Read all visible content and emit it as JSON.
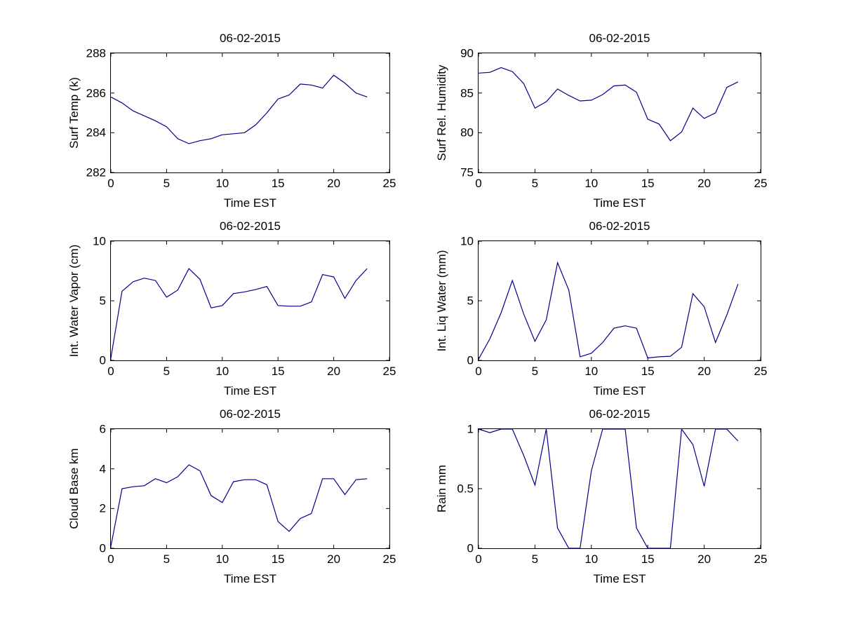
{
  "style": {
    "line_color": "#00008B",
    "axis_color": "#000000",
    "text_color": "#000000",
    "background": "#ffffff"
  },
  "chart_data": [
    {
      "type": "line",
      "title": "06-02-2015",
      "xlabel": "Time EST",
      "ylabel": "Surf Temp (k)",
      "xlim": [
        0,
        25
      ],
      "ylim": [
        282,
        288
      ],
      "xticks": [
        0,
        5,
        10,
        15,
        20,
        25
      ],
      "yticks": [
        282,
        284,
        286,
        288
      ],
      "grid": false,
      "legend": null,
      "x": [
        0,
        1,
        2,
        3,
        4,
        5,
        6,
        7,
        8,
        9,
        10,
        11,
        12,
        13,
        14,
        15,
        16,
        17,
        18,
        19,
        20,
        21,
        22,
        23
      ],
      "values": [
        285.8,
        285.5,
        285.1,
        284.85,
        284.6,
        284.3,
        283.7,
        283.45,
        283.6,
        283.7,
        283.9,
        283.95,
        284.0,
        284.4,
        285.0,
        285.7,
        285.9,
        286.45,
        286.4,
        286.25,
        286.9,
        286.5,
        286.0,
        285.8
      ]
    },
    {
      "type": "line",
      "title": "06-02-2015",
      "xlabel": "Time EST",
      "ylabel": "Surf Rel. Humidity",
      "xlim": [
        0,
        25
      ],
      "ylim": [
        75,
        90
      ],
      "xticks": [
        0,
        5,
        10,
        15,
        20,
        25
      ],
      "yticks": [
        75,
        80,
        85,
        90
      ],
      "grid": false,
      "legend": null,
      "x": [
        0,
        1,
        2,
        3,
        4,
        5,
        6,
        7,
        8,
        9,
        10,
        11,
        12,
        13,
        14,
        15,
        16,
        17,
        18,
        19,
        20,
        21,
        22,
        23
      ],
      "values": [
        87.5,
        87.6,
        88.2,
        87.7,
        86.2,
        83.1,
        83.9,
        85.5,
        84.7,
        84.0,
        84.1,
        84.8,
        85.9,
        86.0,
        85.1,
        81.7,
        81.1,
        79.0,
        80.1,
        83.1,
        81.8,
        82.5,
        85.7,
        86.4
      ]
    },
    {
      "type": "line",
      "title": "06-02-2015",
      "xlabel": "Time EST",
      "ylabel": "Int. Water Vapor (cm)",
      "xlim": [
        0,
        25
      ],
      "ylim": [
        0,
        10
      ],
      "xticks": [
        0,
        5,
        10,
        15,
        20,
        25
      ],
      "yticks": [
        0,
        5,
        10
      ],
      "grid": false,
      "legend": null,
      "x": [
        0,
        1,
        2,
        3,
        4,
        5,
        6,
        7,
        8,
        9,
        10,
        11,
        12,
        13,
        14,
        15,
        16,
        17,
        18,
        19,
        20,
        21,
        22,
        23
      ],
      "values": [
        0.2,
        5.8,
        6.6,
        6.9,
        6.7,
        5.3,
        5.9,
        7.7,
        6.8,
        4.4,
        4.6,
        5.6,
        5.75,
        5.95,
        6.2,
        4.6,
        4.55,
        4.55,
        4.9,
        7.2,
        7.0,
        5.2,
        6.7,
        7.7
      ]
    },
    {
      "type": "line",
      "title": "06-02-2015",
      "xlabel": "Time EST",
      "ylabel": "Int. Liq Water (mm)",
      "xlim": [
        0,
        25
      ],
      "ylim": [
        0,
        10
      ],
      "xticks": [
        0,
        5,
        10,
        15,
        20,
        25
      ],
      "yticks": [
        0,
        5,
        10
      ],
      "grid": false,
      "legend": null,
      "x": [
        0,
        1,
        2,
        3,
        4,
        5,
        6,
        7,
        8,
        9,
        10,
        11,
        12,
        13,
        14,
        15,
        16,
        17,
        18,
        19,
        20,
        21,
        22,
        23
      ],
      "values": [
        0.1,
        1.8,
        4.0,
        6.7,
        3.9,
        1.6,
        3.4,
        8.2,
        5.9,
        0.3,
        0.6,
        1.5,
        2.7,
        2.9,
        2.7,
        0.2,
        0.3,
        0.35,
        1.1,
        5.6,
        4.5,
        1.5,
        3.8,
        6.4
      ]
    },
    {
      "type": "line",
      "title": "06-02-2015",
      "xlabel": "Time EST",
      "ylabel": "Cloud Base km",
      "xlim": [
        0,
        25
      ],
      "ylim": [
        0,
        6
      ],
      "xticks": [
        0,
        5,
        10,
        15,
        20,
        25
      ],
      "yticks": [
        0,
        2,
        4,
        6
      ],
      "grid": false,
      "legend": null,
      "x": [
        0,
        1,
        2,
        3,
        4,
        5,
        6,
        7,
        8,
        9,
        10,
        11,
        12,
        13,
        14,
        15,
        16,
        17,
        18,
        19,
        20,
        21,
        22,
        23
      ],
      "values": [
        0.1,
        3.0,
        3.1,
        3.15,
        3.5,
        3.3,
        3.6,
        4.2,
        3.9,
        2.65,
        2.3,
        3.35,
        3.45,
        3.45,
        3.2,
        1.35,
        0.85,
        1.5,
        1.75,
        3.5,
        3.5,
        2.7,
        3.45,
        3.5
      ]
    },
    {
      "type": "line",
      "title": "06-02-2015",
      "xlabel": "Time EST",
      "ylabel": "Rain mm",
      "xlim": [
        0,
        25
      ],
      "ylim": [
        0,
        1
      ],
      "xticks": [
        0,
        5,
        10,
        15,
        20,
        25
      ],
      "yticks": [
        0,
        0.5,
        1
      ],
      "grid": false,
      "legend": null,
      "x": [
        0,
        1,
        2,
        3,
        4,
        5,
        6,
        7,
        8,
        9,
        10,
        11,
        12,
        13,
        14,
        15,
        16,
        17,
        18,
        19,
        20,
        21,
        22,
        23
      ],
      "values": [
        1.0,
        0.97,
        1.0,
        1.0,
        0.78,
        0.53,
        1.0,
        0.17,
        0.0,
        0.0,
        0.65,
        1.0,
        1.0,
        1.0,
        0.17,
        0.0,
        0.0,
        0.0,
        1.0,
        0.87,
        0.52,
        1.0,
        1.0,
        0.9
      ]
    }
  ]
}
